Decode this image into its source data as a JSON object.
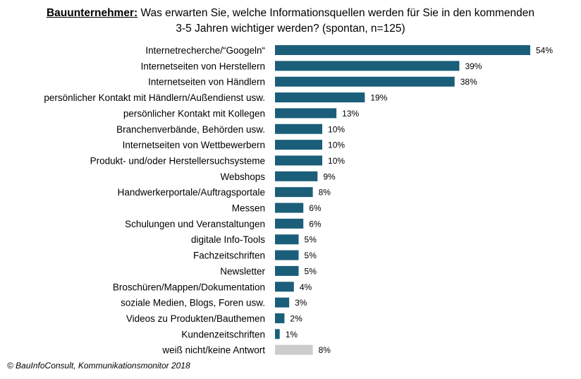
{
  "title": {
    "prefix": "Bauunternehmer:",
    "line1": "Was erwarten Sie, welche Informationsquellen werden für Sie in den kommenden",
    "line2": "3-5 Jahren wichtiger werden? (spontan, n=125)"
  },
  "source": "© BauInfoConsult, Kommunikationsmonitor 2018",
  "colors": {
    "bar": "#1b5e79",
    "bar_other": "#cccccc"
  },
  "chart_data": {
    "type": "bar",
    "orientation": "horizontal",
    "title": "Was erwarten Sie, welche Informationsquellen werden für Sie in den kommenden 3-5 Jahren wichtiger werden? (spontan, n=125)",
    "categories": [
      "Internetrecherche/“Googeln“",
      "Internetseiten von Herstellern",
      "Internetseiten von Händlern",
      "persönlicher Kontakt mit Händlern/Außendienst usw.",
      "persönlicher Kontakt mit Kollegen",
      "Branchenverbände, Behörden usw.",
      "Internetseiten von Wettbewerbern",
      "Produkt- und/oder Herstellersuchsysteme",
      "Webshops",
      "Handwerkerportale/Auftragsportale",
      "Messen",
      "Schulungen und Veranstaltungen",
      "digitale Info-Tools",
      "Fachzeitschriften",
      "Newsletter",
      "Broschüren/Mappen/Dokumentation",
      "soziale Medien, Blogs, Foren usw.",
      "Videos zu Produkten/Bauthemen",
      "Kundenzeitschriften",
      "weiß nicht/keine Antwort"
    ],
    "values": [
      54,
      39,
      38,
      19,
      13,
      10,
      10,
      10,
      9,
      8,
      6,
      6,
      5,
      5,
      5,
      4,
      3,
      2,
      1,
      8
    ],
    "value_labels": [
      "54%",
      "39%",
      "38%",
      "19%",
      "13%",
      "10%",
      "10%",
      "10%",
      "9%",
      "8%",
      "6%",
      "6%",
      "5%",
      "5%",
      "5%",
      "4%",
      "3%",
      "2%",
      "1%",
      "8%"
    ],
    "highlight_last_gray": true,
    "unit": "%",
    "xlim": [
      0,
      54
    ],
    "grid": false,
    "legend": "none"
  }
}
